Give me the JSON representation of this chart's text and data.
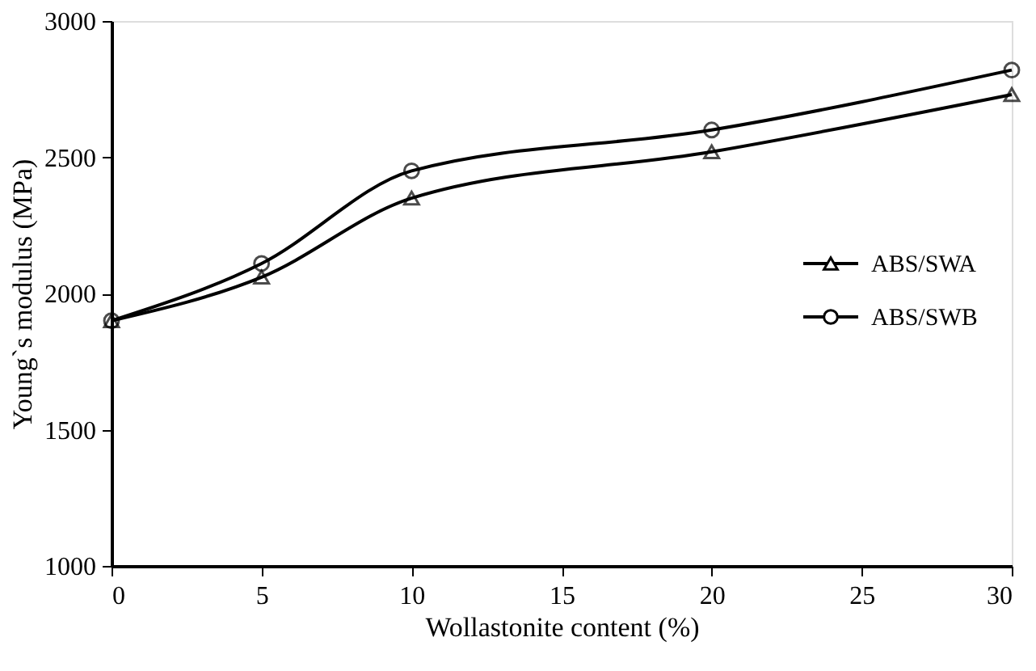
{
  "chart_data": {
    "type": "line",
    "xlabel": "Wollastonite content (%)",
    "ylabel": "Young`s modulus (MPa)",
    "x": [
      0,
      5,
      10,
      20,
      30
    ],
    "series": [
      {
        "name": "ABS/SWA",
        "color": "#000000",
        "marker": "triangle",
        "values": [
          1900,
          2060,
          2350,
          2520,
          2730
        ]
      },
      {
        "name": "ABS/SWB",
        "color": "#000000",
        "marker": "circle",
        "values": [
          1900,
          2110,
          2450,
          2600,
          2820
        ]
      }
    ],
    "xlim": [
      0,
      30
    ],
    "xticks": [
      0,
      5,
      10,
      15,
      20,
      25,
      30
    ],
    "ylim": [
      1000,
      3000
    ],
    "yticks": [
      1000,
      1500,
      2000,
      2500,
      3000
    ],
    "grid": false,
    "legend": "right",
    "line_style": "solid"
  }
}
